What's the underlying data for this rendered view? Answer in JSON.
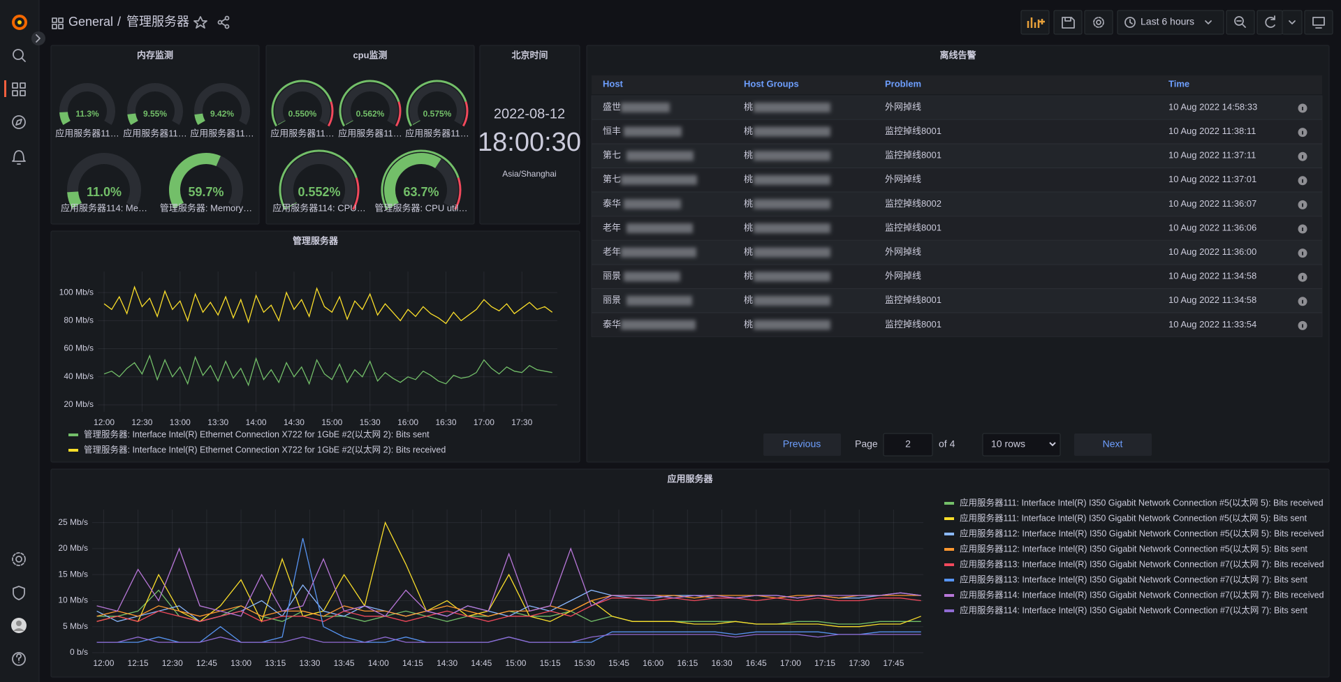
{
  "topbar": {
    "folder": "General",
    "separator": "/",
    "dashboard": "管理服务器",
    "time_range": "Last 6 hours"
  },
  "memory": {
    "title": "内存监测",
    "gauge_range": [
      0,
      100
    ],
    "color": "#73bf69",
    "show_thresholds": false,
    "gauges": [
      {
        "label": "应用服务器11…",
        "value": 11.3,
        "value_label": "11.3%"
      },
      {
        "label": "应用服务器11…",
        "value": 9.55,
        "value_label": "9.55%"
      },
      {
        "label": "应用服务器11…",
        "value": 9.42,
        "value_label": "9.42%"
      },
      {
        "label": "应用服务器114: Me…",
        "value": 11.0,
        "value_label": "11.0%"
      },
      {
        "label": "管理服务器: Memory…",
        "value": 59.7,
        "value_label": "59.7%"
      }
    ]
  },
  "cpu": {
    "title": "cpu监测",
    "gauge_range": [
      0,
      100
    ],
    "color": "#73bf69",
    "show_thresholds": true,
    "threshold": 80,
    "threshold_color": "#f2495c",
    "gauges": [
      {
        "label": "应用服务器11…",
        "value": 0.55,
        "value_label": "0.550%"
      },
      {
        "label": "应用服务器11…",
        "value": 0.562,
        "value_label": "0.562%"
      },
      {
        "label": "应用服务器11…",
        "value": 0.575,
        "value_label": "0.575%"
      },
      {
        "label": "应用服务器114: CPU…",
        "value": 0.552,
        "value_label": "0.552%"
      },
      {
        "label": "管理服务器: CPU util…",
        "value": 63.7,
        "value_label": "63.7%"
      }
    ]
  },
  "clock": {
    "title": "北京时间",
    "date": "2022-08-12",
    "time": "18:00:30",
    "timezone": "Asia/Shanghai"
  },
  "alerts": {
    "title": "离线告警",
    "columns": [
      "Host",
      "Host Groups",
      "Problem",
      "Time"
    ],
    "rows": [
      [
        "盛世",
        "桃",
        "外网掉线",
        "10 Aug 2022 14:58:33"
      ],
      [
        "恒丰",
        "桃",
        "监控掉线8001",
        "10 Aug 2022 11:38:11"
      ],
      [
        "第七",
        "桃",
        "监控掉线8001",
        "10 Aug 2022 11:37:11"
      ],
      [
        "第七",
        "桃",
        "外网掉线",
        "10 Aug 2022 11:37:01"
      ],
      [
        "泰华",
        "桃",
        "监控掉线8002",
        "10 Aug 2022 11:36:07"
      ],
      [
        "老年",
        "桃",
        "监控掉线8001",
        "10 Aug 2022 11:36:06"
      ],
      [
        "老年",
        "桃",
        "外网掉线",
        "10 Aug 2022 11:36:00"
      ],
      [
        "丽景",
        "桃",
        "外网掉线",
        "10 Aug 2022 11:34:58"
      ],
      [
        "丽景",
        "桃",
        "监控掉线8001",
        "10 Aug 2022 11:34:58"
      ],
      [
        "泰华",
        "桃",
        "监控掉线8001",
        "10 Aug 2022 11:33:54"
      ]
    ],
    "pagination": {
      "previous": "Previous",
      "page_label": "Page",
      "page": 2,
      "of": "of 4",
      "rows_per_page": "10 rows",
      "next": "Next"
    }
  },
  "management_chart": {
    "type": "line",
    "title": "管理服务器",
    "grid": true,
    "legend": "bottom",
    "xlim": [
      "11:55",
      "17:58"
    ],
    "xticks": [
      "12:00",
      "12:30",
      "13:00",
      "13:30",
      "14:00",
      "14:30",
      "15:00",
      "15:30",
      "16:00",
      "16:30",
      "17:00",
      "17:30"
    ],
    "ylim": [
      15,
      115
    ],
    "yticks": [
      {
        "value": 20,
        "label": "20 Mb/s"
      },
      {
        "value": 40,
        "label": "40 Mb/s"
      },
      {
        "value": 60,
        "label": "60 Mb/s"
      },
      {
        "value": 80,
        "label": "80 Mb/s"
      },
      {
        "value": 100,
        "label": "100 Mb/s"
      }
    ],
    "x": [
      "12:00",
      "12:06",
      "12:12",
      "12:18",
      "12:24",
      "12:30",
      "12:36",
      "12:42",
      "12:48",
      "12:54",
      "13:00",
      "13:06",
      "13:12",
      "13:18",
      "13:24",
      "13:30",
      "13:36",
      "13:42",
      "13:48",
      "13:54",
      "14:00",
      "14:06",
      "14:12",
      "14:18",
      "14:24",
      "14:30",
      "14:36",
      "14:42",
      "14:48",
      "14:54",
      "15:00",
      "15:06",
      "15:12",
      "15:18",
      "15:24",
      "15:30",
      "15:36",
      "15:42",
      "15:48",
      "15:54",
      "16:00",
      "16:06",
      "16:12",
      "16:18",
      "16:24",
      "16:30",
      "16:36",
      "16:42",
      "16:48",
      "16:54",
      "17:00",
      "17:06",
      "17:12",
      "17:18",
      "17:24",
      "17:30",
      "17:36",
      "17:42",
      "17:48",
      "17:54"
    ],
    "series": [
      {
        "name": "管理服务器: Interface Intel(R) Ethernet Connection X722 for 1GbE #2(以太网 2): Bits sent",
        "color": "#73bf69",
        "values": [
          42,
          44,
          40,
          46,
          50,
          42,
          55,
          38,
          52,
          40,
          47,
          35,
          54,
          41,
          48,
          37,
          51,
          39,
          46,
          34,
          53,
          38,
          45,
          36,
          50,
          40,
          47,
          35,
          52,
          42,
          38,
          49,
          36,
          45,
          40,
          51,
          37,
          43,
          39,
          36,
          40,
          38,
          44,
          41,
          37,
          35,
          41,
          39,
          40,
          43,
          52,
          46,
          42,
          47,
          44,
          43,
          48,
          45,
          44,
          43
        ]
      },
      {
        "name": "管理服务器: Interface Intel(R) Ethernet Connection X722 for 1GbE #2(以太网 2): Bits received",
        "color": "#fade2a",
        "values": [
          92,
          88,
          97,
          85,
          104,
          90,
          96,
          83,
          101,
          88,
          94,
          80,
          99,
          86,
          93,
          84,
          97,
          82,
          95,
          79,
          98,
          86,
          91,
          80,
          100,
          88,
          95,
          83,
          103,
          90,
          86,
          97,
          81,
          94,
          88,
          99,
          84,
          92,
          86,
          80,
          88,
          83,
          90,
          85,
          82,
          78,
          86,
          80,
          84,
          88,
          95,
          90,
          87,
          92,
          85,
          89,
          93,
          88,
          90,
          86
        ]
      }
    ]
  },
  "application_chart": {
    "type": "line",
    "title": "应用服务器",
    "grid": true,
    "legend": "right",
    "xlim": [
      "11:55",
      "17:58"
    ],
    "xticks": [
      "12:00",
      "12:15",
      "12:30",
      "12:45",
      "13:00",
      "13:15",
      "13:30",
      "13:45",
      "14:00",
      "14:15",
      "14:30",
      "14:45",
      "15:00",
      "15:15",
      "15:30",
      "15:45",
      "16:00",
      "16:15",
      "16:30",
      "16:45",
      "17:00",
      "17:15",
      "17:30",
      "17:45"
    ],
    "ylim": [
      0,
      27.5
    ],
    "yticks": [
      {
        "value": 0,
        "label": "0 b/s"
      },
      {
        "value": 5,
        "label": "5 Mb/s"
      },
      {
        "value": 10,
        "label": "10 Mb/s"
      },
      {
        "value": 15,
        "label": "15 Mb/s"
      },
      {
        "value": 20,
        "label": "20 Mb/s"
      },
      {
        "value": 25,
        "label": "25 Mb/s"
      }
    ],
    "x": [
      "11:57",
      "12:06",
      "12:15",
      "12:24",
      "12:33",
      "12:42",
      "12:51",
      "13:00",
      "13:09",
      "13:18",
      "13:27",
      "13:36",
      "13:45",
      "13:54",
      "14:03",
      "14:12",
      "14:21",
      "14:30",
      "14:39",
      "14:48",
      "14:57",
      "15:06",
      "15:15",
      "15:24",
      "15:33",
      "15:42",
      "15:51",
      "16:00",
      "16:09",
      "16:18",
      "16:27",
      "16:36",
      "16:45",
      "16:54",
      "17:03",
      "17:12",
      "17:21",
      "17:30",
      "17:39",
      "17:48",
      "17:57"
    ],
    "series": [
      {
        "name": "应用服务器111: Interface Intel(R) I350 Gigabit Network Connection #5(以太网 5): Bits received",
        "color": "#73bf69",
        "values": [
          7,
          7,
          8,
          12,
          7,
          6,
          7,
          9,
          7,
          6,
          8,
          7,
          7,
          6,
          7,
          8,
          7,
          6,
          7,
          7,
          8,
          7,
          7,
          8,
          6,
          7,
          6,
          6,
          6,
          6,
          6,
          6,
          5.5,
          5.5,
          6,
          6,
          5.5,
          5.5,
          6,
          6,
          6
        ]
      },
      {
        "name": "应用服务器111: Interface Intel(R) I350 Gigabit Network Connection #5(以太网 5): Bits sent",
        "color": "#fade2a",
        "values": [
          6,
          7,
          6,
          15,
          8,
          6,
          9,
          14,
          6,
          18,
          7,
          8,
          15,
          9,
          25,
          17,
          8,
          10,
          7,
          8,
          15,
          7,
          6,
          8,
          10,
          7,
          6,
          6,
          6,
          5.5,
          5.5,
          6,
          5.5,
          5.5,
          5.5,
          5.5,
          5,
          5,
          5.5,
          5.5,
          7
        ]
      },
      {
        "name": "应用服务器112: Interface Intel(R) I350 Gigabit Network Connection #5(以太网 5): Bits received",
        "color": "#8ab8ff",
        "values": [
          8,
          6,
          7,
          8,
          9,
          6,
          7,
          8,
          10,
          7,
          13,
          8,
          7,
          9,
          8,
          7,
          8,
          7,
          9,
          8,
          7,
          9,
          8,
          10,
          12,
          11,
          10.5,
          10.5,
          11,
          11,
          10.5,
          10.5,
          11,
          11,
          10.5,
          11,
          10.5,
          10.5,
          11,
          11.5,
          11
        ]
      },
      {
        "name": "应用服务器112: Interface Intel(R) I350 Gigabit Network Connection #5(以太网 5): Bits sent",
        "color": "#ff9830",
        "values": [
          7,
          8,
          7,
          9,
          8,
          7,
          8,
          9,
          7,
          8,
          8,
          7,
          9,
          8,
          8,
          7,
          8,
          9,
          8,
          7,
          8,
          8,
          9,
          8,
          10,
          11,
          11,
          11,
          11,
          10.5,
          11,
          11,
          11,
          10.5,
          11,
          11,
          10.5,
          11,
          11,
          11,
          11
        ]
      },
      {
        "name": "应用服务器113: Interface Intel(R) I350 Gigabit Network Connection #7(以太网 7): Bits received",
        "color": "#f2495c",
        "values": [
          6,
          7,
          6,
          8,
          7,
          6,
          7,
          8,
          6,
          7,
          7,
          6,
          8,
          7,
          7,
          6,
          7,
          8,
          7,
          6,
          7,
          7,
          8,
          7,
          9,
          10.5,
          10.5,
          10,
          10.5,
          10,
          10.5,
          10.5,
          10,
          10.5,
          10,
          10.5,
          10,
          10,
          10.5,
          10.5,
          10
        ]
      },
      {
        "name": "应用服务器113: Interface Intel(R) I350 Gigabit Network Connection #7(以太网 7): Bits sent",
        "color": "#5794f2",
        "values": [
          2,
          2,
          2,
          3,
          2,
          2,
          5,
          2,
          2,
          3,
          22,
          5,
          3,
          2,
          2,
          3,
          2,
          2,
          2,
          2,
          3,
          2,
          2,
          2,
          2,
          4,
          4,
          4,
          4,
          4,
          4,
          3.5,
          4,
          4,
          4,
          4,
          3.5,
          3.5,
          4,
          4,
          4
        ]
      },
      {
        "name": "应用服务器114: Interface Intel(R) I350 Gigabit Network Connection #7(以太网 7): Bits received",
        "color": "#b877d9",
        "values": [
          9,
          8,
          16,
          10,
          20,
          9,
          8,
          7,
          15,
          8,
          9,
          18,
          8,
          9,
          7,
          12,
          8,
          7,
          9,
          8,
          19,
          8,
          9,
          20,
          9,
          11,
          11,
          11,
          10.5,
          11,
          11,
          10.5,
          11,
          11,
          10.5,
          11,
          11,
          11,
          11,
          11.5,
          11
        ]
      },
      {
        "name": "应用服务器114: Interface Intel(R) I350 Gigabit Network Connection #7(以太网 7): Bits sent",
        "color": "#8f6bd3",
        "values": [
          2,
          2,
          3,
          2,
          2,
          2,
          3,
          2,
          2,
          2,
          3,
          2,
          2,
          2,
          3,
          2,
          2,
          2,
          2,
          2,
          3,
          2,
          2,
          2,
          3,
          3.5,
          3.5,
          3.5,
          3.5,
          3.5,
          3.5,
          3,
          3.5,
          3.5,
          3.5,
          3,
          3.5,
          3.5,
          3.5,
          3.5,
          3.5
        ]
      }
    ]
  }
}
